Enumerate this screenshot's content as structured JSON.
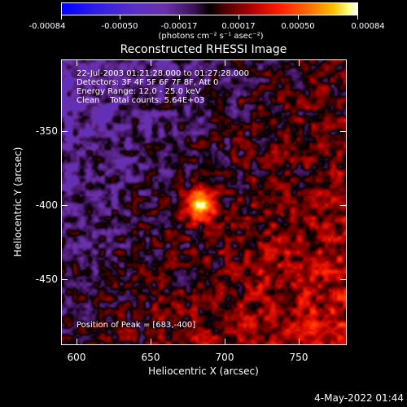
{
  "colorbar": {
    "tick_labels": [
      "-0.00084",
      "-0.00050",
      "-0.00017",
      "0.00017",
      "0.00050",
      "0.00084"
    ],
    "units": "(photons cm⁻² s⁻¹ asec⁻²)"
  },
  "title": "Reconstructed RHESSI Image",
  "annotations": {
    "time_range": "22-Jul-2003 01:21:28.000 to 01:27:28.000",
    "detectors": "Detectors: 3F 4F 5F 6F 7F 8F, Att 0",
    "energy_range": "Energy Range: 12.0 - 25.0 keV",
    "clean_counts": "Clean    Total counts: 5.64E+03",
    "peak_position": "Position of Peak = [683,-400]"
  },
  "x_axis": {
    "label": "Heliocentric X (arcsec)",
    "ticks": [
      "600",
      "650",
      "700",
      "750"
    ]
  },
  "y_axis": {
    "label": "Heliocentric Y (arcsec)",
    "ticks": [
      "-350",
      "-400",
      "-450"
    ]
  },
  "timestamp": "4-May-2022 01:44",
  "chart_data": {
    "type": "heatmap",
    "title": "Reconstructed RHESSI Image",
    "xlabel": "Heliocentric X (arcsec)",
    "ylabel": "Heliocentric Y (arcsec)",
    "xlim": [
      588,
      783
    ],
    "ylim": [
      -496,
      -301
    ],
    "color_range": [
      -0.00084,
      0.00084
    ],
    "colorbar_units": "photons cm^-2 s^-1 asec^-2",
    "peak": [
      683,
      -400
    ]
  }
}
